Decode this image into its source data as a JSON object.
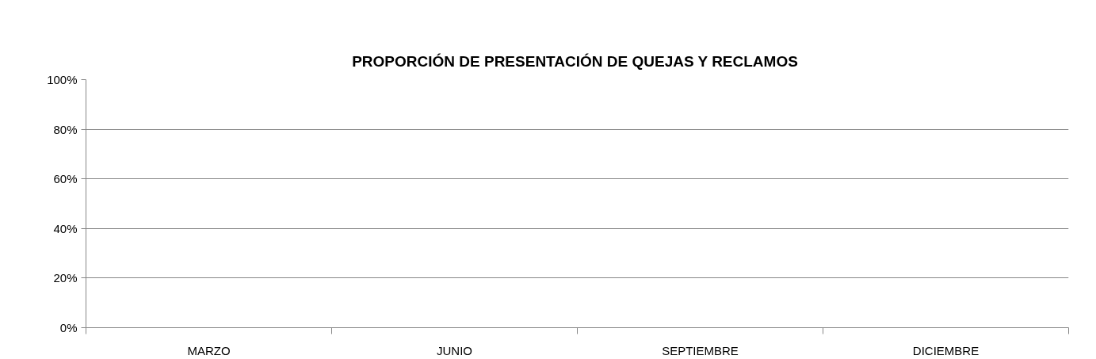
{
  "chart_data": {
    "type": "bar",
    "title": "PROPORCIÓN  DE PRESENTACIÓN DE QUEJAS Y RECLAMOS",
    "categories": [
      "MARZO",
      "JUNIO",
      "SEPTIEMBRE",
      "DICIEMBRE"
    ],
    "values": [
      0,
      0,
      0,
      0
    ],
    "ylim": [
      0,
      100
    ],
    "yticks": [
      {
        "value": 0,
        "label": "0%"
      },
      {
        "value": 20,
        "label": "20%"
      },
      {
        "value": 40,
        "label": "40%"
      },
      {
        "value": 60,
        "label": "60%"
      },
      {
        "value": 80,
        "label": "80%"
      },
      {
        "value": 100,
        "label": "100%"
      }
    ],
    "grid": "y"
  }
}
